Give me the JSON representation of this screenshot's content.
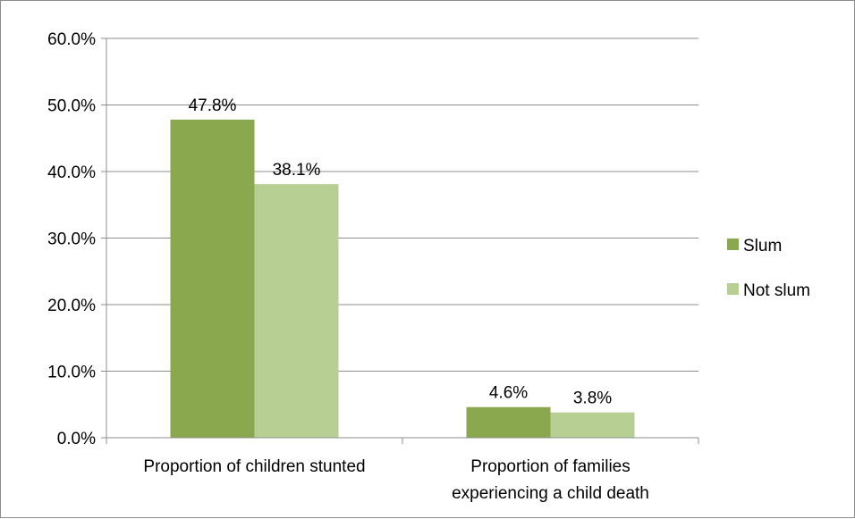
{
  "chart_data": {
    "type": "bar",
    "title": "",
    "xlabel": "",
    "ylabel": "",
    "categories": [
      [
        "Proportion of children stunted"
      ],
      [
        "Proportion of families",
        "experiencing a child death"
      ]
    ],
    "series": [
      {
        "name": "Slum",
        "color": "#8aa94f",
        "values": [
          47.8,
          4.6
        ],
        "labels": [
          "47.8%",
          "4.6%"
        ]
      },
      {
        "name": "Not slum",
        "color": "#b8cf94",
        "values": [
          38.1,
          3.8
        ],
        "labels": [
          "38.1%",
          "3.8%"
        ]
      }
    ],
    "ylim": [
      0,
      60
    ],
    "yticks": [
      "0.0%",
      "10.0%",
      "20.0%",
      "30.0%",
      "40.0%",
      "50.0%",
      "60.0%"
    ],
    "grid": true,
    "legend_position": "right"
  }
}
